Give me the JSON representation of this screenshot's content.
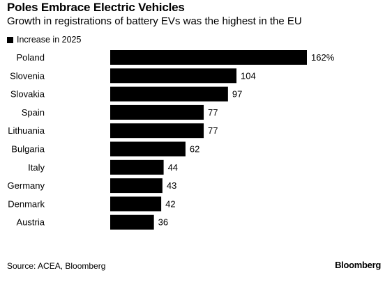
{
  "title": "Poles Embrace Electric Vehicles",
  "subtitle": "Growth in registrations of battery EVs was the highest in the EU",
  "source": "Source: ACEA, Bloomberg",
  "brand": "Bloomberg",
  "colors": {
    "bar": "#000000",
    "text": "#000000",
    "background": "#ffffff"
  },
  "chart_data": {
    "type": "bar",
    "orientation": "horizontal",
    "title": "Poles Embrace Electric Vehicles",
    "subtitle": "Growth in registrations of battery EVs was the highest in the EU",
    "categories": [
      "Poland",
      "Slovenia",
      "Slovakia",
      "Spain",
      "Lithuania",
      "Bulgaria",
      "Italy",
      "Germany",
      "Denmark",
      "Austria"
    ],
    "series": [
      {
        "name": "Increase in 2025",
        "values": [
          162,
          104,
          97,
          77,
          77,
          62,
          44,
          43,
          42,
          36
        ]
      }
    ],
    "data_labels": [
      "162%",
      "104",
      "97",
      "77",
      "77",
      "62",
      "44",
      "43",
      "42",
      "36"
    ],
    "xlim": [
      0,
      162
    ],
    "legend": "top-left",
    "grid": false
  }
}
